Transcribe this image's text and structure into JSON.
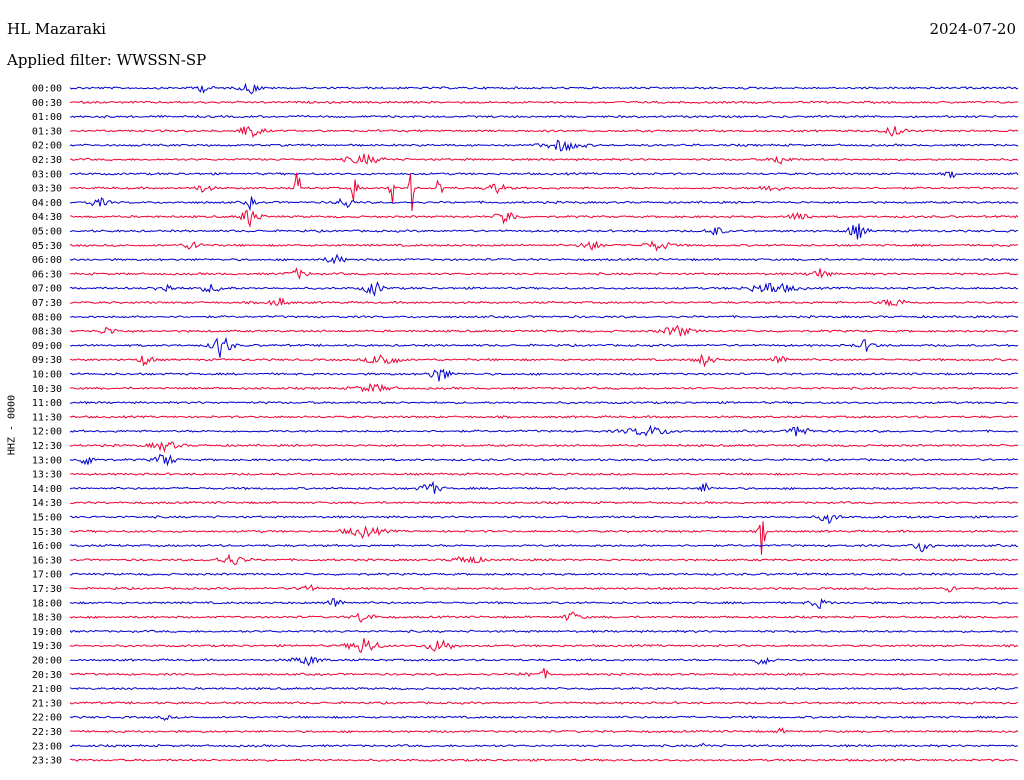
{
  "header": {
    "station": "HL Mazaraki",
    "date": "2024-07-20",
    "filter_label": "Applied filter: WWSSN-SP"
  },
  "side_label": "HHZ - 0000",
  "colors": {
    "blue": "#0000cc",
    "red": "#ee0033"
  },
  "chart_data": {
    "type": "line",
    "title": "HL Mazaraki",
    "ylabel": "HHZ - 0000",
    "rows": [
      "00:00",
      "00:30",
      "01:00",
      "01:30",
      "02:00",
      "02:30",
      "03:00",
      "03:30",
      "04:00",
      "04:30",
      "05:00",
      "05:30",
      "06:00",
      "06:30",
      "07:00",
      "07:30",
      "08:00",
      "08:30",
      "09:00",
      "09:30",
      "10:00",
      "10:30",
      "11:00",
      "11:30",
      "12:00",
      "12:30",
      "13:00",
      "13:30",
      "14:00",
      "14:30",
      "15:00",
      "15:30",
      "16:00",
      "16:30",
      "17:00",
      "17:30",
      "18:00",
      "18:30",
      "19:00",
      "19:30",
      "20:00",
      "20:30",
      "21:00",
      "21:30",
      "22:00",
      "22:30",
      "23:00",
      "23:30"
    ],
    "color_cycle": [
      "blue",
      "red"
    ],
    "bursts": [
      {
        "row": 0,
        "pos": 0.14,
        "amp": 4,
        "w": 0.02
      },
      {
        "row": 0,
        "pos": 0.19,
        "amp": 6,
        "w": 0.02
      },
      {
        "row": 3,
        "pos": 0.19,
        "amp": 7,
        "w": 0.025
      },
      {
        "row": 3,
        "pos": 0.87,
        "amp": 6,
        "w": 0.02
      },
      {
        "row": 4,
        "pos": 0.52,
        "amp": 6,
        "w": 0.04
      },
      {
        "row": 5,
        "pos": 0.31,
        "amp": 5,
        "w": 0.04
      },
      {
        "row": 5,
        "pos": 0.75,
        "amp": 5,
        "w": 0.02
      },
      {
        "row": 6,
        "pos": 0.93,
        "amp": 4,
        "w": 0.01
      },
      {
        "row": 7,
        "pos": 0.14,
        "amp": 4,
        "w": 0.02
      },
      {
        "row": 7,
        "pos": 0.24,
        "amp": 42,
        "w": 0.004
      },
      {
        "row": 7,
        "pos": 0.3,
        "amp": 18,
        "w": 0.006
      },
      {
        "row": 7,
        "pos": 0.34,
        "amp": 16,
        "w": 0.006
      },
      {
        "row": 7,
        "pos": 0.36,
        "amp": 35,
        "w": 0.004
      },
      {
        "row": 7,
        "pos": 0.39,
        "amp": 20,
        "w": 0.006
      },
      {
        "row": 7,
        "pos": 0.45,
        "amp": 6,
        "w": 0.02
      },
      {
        "row": 7,
        "pos": 0.74,
        "amp": 5,
        "w": 0.02
      },
      {
        "row": 8,
        "pos": 0.03,
        "amp": 5,
        "w": 0.02
      },
      {
        "row": 8,
        "pos": 0.19,
        "amp": 7,
        "w": 0.01
      },
      {
        "row": 8,
        "pos": 0.29,
        "amp": 8,
        "w": 0.015
      },
      {
        "row": 9,
        "pos": 0.19,
        "amp": 10,
        "w": 0.02
      },
      {
        "row": 9,
        "pos": 0.46,
        "amp": 9,
        "w": 0.02
      },
      {
        "row": 9,
        "pos": 0.77,
        "amp": 6,
        "w": 0.02
      },
      {
        "row": 10,
        "pos": 0.68,
        "amp": 5,
        "w": 0.02
      },
      {
        "row": 10,
        "pos": 0.83,
        "amp": 9,
        "w": 0.02
      },
      {
        "row": 11,
        "pos": 0.13,
        "amp": 5,
        "w": 0.02
      },
      {
        "row": 11,
        "pos": 0.55,
        "amp": 6,
        "w": 0.02
      },
      {
        "row": 11,
        "pos": 0.62,
        "amp": 5,
        "w": 0.03
      },
      {
        "row": 12,
        "pos": 0.28,
        "amp": 5,
        "w": 0.02
      },
      {
        "row": 13,
        "pos": 0.24,
        "amp": 5,
        "w": 0.02
      },
      {
        "row": 13,
        "pos": 0.79,
        "amp": 6,
        "w": 0.02
      },
      {
        "row": 14,
        "pos": 0.1,
        "amp": 5,
        "w": 0.02
      },
      {
        "row": 14,
        "pos": 0.15,
        "amp": 4,
        "w": 0.03
      },
      {
        "row": 14,
        "pos": 0.32,
        "amp": 8,
        "w": 0.02
      },
      {
        "row": 14,
        "pos": 0.74,
        "amp": 6,
        "w": 0.05
      },
      {
        "row": 15,
        "pos": 0.22,
        "amp": 5,
        "w": 0.02
      },
      {
        "row": 15,
        "pos": 0.87,
        "amp": 4,
        "w": 0.03
      },
      {
        "row": 17,
        "pos": 0.04,
        "amp": 4,
        "w": 0.02
      },
      {
        "row": 17,
        "pos": 0.64,
        "amp": 6,
        "w": 0.03
      },
      {
        "row": 18,
        "pos": 0.16,
        "amp": 14,
        "w": 0.02
      },
      {
        "row": 18,
        "pos": 0.84,
        "amp": 6,
        "w": 0.02
      },
      {
        "row": 19,
        "pos": 0.08,
        "amp": 7,
        "w": 0.015
      },
      {
        "row": 19,
        "pos": 0.33,
        "amp": 8,
        "w": 0.03
      },
      {
        "row": 19,
        "pos": 0.67,
        "amp": 7,
        "w": 0.02
      },
      {
        "row": 19,
        "pos": 0.75,
        "amp": 5,
        "w": 0.02
      },
      {
        "row": 20,
        "pos": 0.39,
        "amp": 9,
        "w": 0.02
      },
      {
        "row": 21,
        "pos": 0.32,
        "amp": 4,
        "w": 0.04
      },
      {
        "row": 24,
        "pos": 0.61,
        "amp": 5,
        "w": 0.05
      },
      {
        "row": 24,
        "pos": 0.77,
        "amp": 8,
        "w": 0.02
      },
      {
        "row": 25,
        "pos": 0.1,
        "amp": 5,
        "w": 0.03
      },
      {
        "row": 26,
        "pos": 0.02,
        "amp": 6,
        "w": 0.02
      },
      {
        "row": 26,
        "pos": 0.1,
        "amp": 8,
        "w": 0.02
      },
      {
        "row": 28,
        "pos": 0.38,
        "amp": 8,
        "w": 0.02
      },
      {
        "row": 28,
        "pos": 0.67,
        "amp": 7,
        "w": 0.01
      },
      {
        "row": 30,
        "pos": 0.8,
        "amp": 6,
        "w": 0.02
      },
      {
        "row": 31,
        "pos": 0.31,
        "amp": 6,
        "w": 0.04
      },
      {
        "row": 31,
        "pos": 0.73,
        "amp": 28,
        "w": 0.006
      },
      {
        "row": 32,
        "pos": 0.9,
        "amp": 7,
        "w": 0.02
      },
      {
        "row": 33,
        "pos": 0.17,
        "amp": 6,
        "w": 0.03
      },
      {
        "row": 33,
        "pos": 0.42,
        "amp": 5,
        "w": 0.03
      },
      {
        "row": 35,
        "pos": 0.25,
        "amp": 6,
        "w": 0.015
      },
      {
        "row": 35,
        "pos": 0.93,
        "amp": 5,
        "w": 0.01
      },
      {
        "row": 36,
        "pos": 0.28,
        "amp": 5,
        "w": 0.02
      },
      {
        "row": 36,
        "pos": 0.79,
        "amp": 5,
        "w": 0.02
      },
      {
        "row": 37,
        "pos": 0.31,
        "amp": 7,
        "w": 0.02
      },
      {
        "row": 37,
        "pos": 0.53,
        "amp": 5,
        "w": 0.02
      },
      {
        "row": 39,
        "pos": 0.31,
        "amp": 9,
        "w": 0.03
      },
      {
        "row": 39,
        "pos": 0.39,
        "amp": 7,
        "w": 0.03
      },
      {
        "row": 40,
        "pos": 0.25,
        "amp": 5,
        "w": 0.03
      },
      {
        "row": 40,
        "pos": 0.73,
        "amp": 6,
        "w": 0.02
      },
      {
        "row": 41,
        "pos": 0.48,
        "amp": 5,
        "w": 0.01
      },
      {
        "row": 41,
        "pos": 0.5,
        "amp": 5,
        "w": 0.01
      },
      {
        "row": 44,
        "pos": 0.1,
        "amp": 3,
        "w": 0.01
      },
      {
        "row": 45,
        "pos": 0.75,
        "amp": 3,
        "w": 0.01
      },
      {
        "row": 46,
        "pos": 0.67,
        "amp": 3,
        "w": 0.01
      }
    ]
  }
}
